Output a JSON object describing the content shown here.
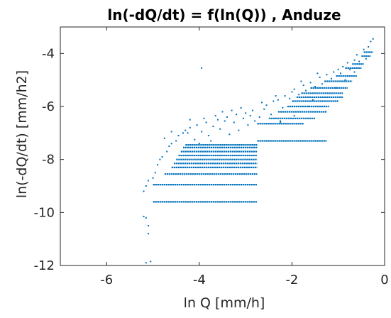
{
  "chart_data": {
    "type": "scatter",
    "title": "ln(-dQ/dt) = f(ln(Q)) , Anduze",
    "xlabel": "ln Q [mm/h]",
    "ylabel": "ln(-dQ/dt) [mm/h2]",
    "xlim": [
      -7,
      0
    ],
    "ylim": [
      -12,
      -3
    ],
    "xticks": [
      -6,
      -4,
      -2,
      0
    ],
    "yticks": [
      -12,
      -10,
      -8,
      -6,
      -4
    ],
    "grid": false,
    "legend": "none",
    "marker_color": "#0072BD",
    "bands": [
      {
        "x": [
          -5.0,
          -2.75
        ],
        "y": -9.6
      },
      {
        "x": [
          -5.0,
          -2.75
        ],
        "y": -8.95
      },
      {
        "x": [
          -4.75,
          -2.75
        ],
        "y": -8.55
      },
      {
        "x": [
          -4.6,
          -2.75
        ],
        "y": -8.3
      },
      {
        "x": [
          -4.55,
          -2.75
        ],
        "y": -8.15
      },
      {
        "x": [
          -4.5,
          -2.75
        ],
        "y": -8.0
      },
      {
        "x": [
          -4.45,
          -2.75
        ],
        "y": -7.85
      },
      {
        "x": [
          -4.4,
          -2.75
        ],
        "y": -7.7
      },
      {
        "x": [
          -4.35,
          -2.75
        ],
        "y": -7.55
      },
      {
        "x": [
          -4.3,
          -2.75
        ],
        "y": -7.45
      },
      {
        "x": [
          -2.75,
          -1.25
        ],
        "y": -7.3
      },
      {
        "x": [
          -2.75,
          -1.75
        ],
        "y": -6.65
      },
      {
        "x": [
          -2.5,
          -1.5
        ],
        "y": -6.45
      },
      {
        "x": [
          -2.3,
          -1.25
        ],
        "y": -6.2
      },
      {
        "x": [
          -2.1,
          -1.2
        ],
        "y": -6.0
      },
      {
        "x": [
          -2.0,
          -1.0
        ],
        "y": -5.8
      },
      {
        "x": [
          -1.9,
          -0.9
        ],
        "y": -5.65
      },
      {
        "x": [
          -1.8,
          -0.9
        ],
        "y": -5.5
      },
      {
        "x": [
          -1.6,
          -0.8
        ],
        "y": -5.3
      },
      {
        "x": [
          -1.3,
          -0.7
        ],
        "y": -5.05
      },
      {
        "x": [
          -1.05,
          -0.6
        ],
        "y": -4.85
      },
      {
        "x": [
          -0.85,
          -0.5
        ],
        "y": -4.55
      },
      {
        "x": [
          -0.7,
          -0.45
        ],
        "y": -4.4
      },
      {
        "x": [
          -0.5,
          -0.3
        ],
        "y": -4.1
      },
      {
        "x": [
          -0.45,
          -0.25
        ],
        "y": -3.95
      }
    ],
    "points": [
      [
        -5.2,
        -10.15
      ],
      [
        -5.15,
        -10.2
      ],
      [
        -5.1,
        -10.5
      ],
      [
        -5.1,
        -10.8
      ],
      [
        -5.15,
        -11.9
      ],
      [
        -5.05,
        -11.85
      ],
      [
        -5.2,
        -9.2
      ],
      [
        -5.15,
        -9.0
      ],
      [
        -5.1,
        -8.8
      ],
      [
        -5.0,
        -8.7
      ],
      [
        -4.95,
        -8.5
      ],
      [
        -4.9,
        -8.2
      ],
      [
        -4.85,
        -8.0
      ],
      [
        -4.8,
        -7.9
      ],
      [
        -4.7,
        -7.7
      ],
      [
        -4.65,
        -7.5
      ],
      [
        -4.6,
        -7.4
      ],
      [
        -4.5,
        -7.3
      ],
      [
        -4.45,
        -7.1
      ],
      [
        -4.35,
        -7.0
      ],
      [
        -4.3,
        -6.9
      ],
      [
        -4.2,
        -6.8
      ],
      [
        -4.1,
        -7.25
      ],
      [
        -4.05,
        -6.7
      ],
      [
        -3.95,
        -6.95
      ],
      [
        -3.85,
        -6.6
      ],
      [
        -3.8,
        -7.1
      ],
      [
        -3.7,
        -6.75
      ],
      [
        -3.6,
        -6.5
      ],
      [
        -3.55,
        -6.85
      ],
      [
        -3.45,
        -6.55
      ],
      [
        -3.4,
        -6.4
      ],
      [
        -3.35,
        -7.05
      ],
      [
        -3.25,
        -6.6
      ],
      [
        -3.2,
        -6.3
      ],
      [
        -3.15,
        -6.9
      ],
      [
        -3.05,
        -6.45
      ],
      [
        -3.0,
        -6.25
      ],
      [
        -2.95,
        -6.7
      ],
      [
        -2.9,
        -6.35
      ],
      [
        -2.85,
        -6.15
      ],
      [
        -2.8,
        -6.55
      ],
      [
        -4.6,
        -6.95
      ],
      [
        -4.2,
        -6.5
      ],
      [
        -3.9,
        -6.45
      ],
      [
        -3.5,
        -6.2
      ],
      [
        -3.3,
        -6.15
      ],
      [
        -4.75,
        -7.2
      ],
      [
        -4.0,
        -7.4
      ],
      [
        -3.75,
        -7.3
      ],
      [
        -2.7,
        -6.4
      ],
      [
        -2.6,
        -6.1
      ],
      [
        -2.55,
        -5.95
      ],
      [
        -2.45,
        -6.3
      ],
      [
        -2.4,
        -5.8
      ],
      [
        -2.3,
        -5.75
      ],
      [
        -2.2,
        -6.05
      ],
      [
        -2.15,
        -5.6
      ],
      [
        -2.05,
        -5.7
      ],
      [
        -1.95,
        -5.35
      ],
      [
        -1.85,
        -5.55
      ],
      [
        -1.75,
        -5.2
      ],
      [
        -1.7,
        -5.4
      ],
      [
        -1.6,
        -5.1
      ],
      [
        -1.5,
        -5.25
      ],
      [
        -1.4,
        -4.9
      ],
      [
        -1.35,
        -5.15
      ],
      [
        -1.25,
        -4.8
      ],
      [
        -1.15,
        -4.95
      ],
      [
        -1.1,
        -4.7
      ],
      [
        -1.0,
        -4.6
      ],
      [
        -0.95,
        -4.75
      ],
      [
        -0.9,
        -4.5
      ],
      [
        -0.8,
        -4.35
      ],
      [
        -0.75,
        -4.6
      ],
      [
        -0.65,
        -4.25
      ],
      [
        -0.6,
        -4.05
      ],
      [
        -0.55,
        -4.3
      ],
      [
        -0.45,
        -3.85
      ],
      [
        -0.35,
        -3.75
      ],
      [
        -0.3,
        -3.55
      ],
      [
        -0.25,
        -3.45
      ],
      [
        -0.4,
        -4.2
      ],
      [
        -0.65,
        -4.7
      ],
      [
        -1.55,
        -5.75
      ],
      [
        -1.05,
        -5.3
      ],
      [
        -0.85,
        -5.0
      ],
      [
        -2.25,
        -6.6
      ],
      [
        -1.95,
        -6.35
      ],
      [
        -1.65,
        -6.0
      ],
      [
        -3.95,
        -4.55
      ],
      [
        -2.25,
        -6.55
      ],
      [
        -4.25,
        -7.0
      ],
      [
        -3.65,
        -6.35
      ],
      [
        -3.1,
        -6.05
      ],
      [
        -2.65,
        -5.85
      ],
      [
        -2.35,
        -5.6
      ],
      [
        -2.0,
        -5.45
      ],
      [
        -1.8,
        -5.05
      ],
      [
        -1.45,
        -4.75
      ]
    ]
  }
}
